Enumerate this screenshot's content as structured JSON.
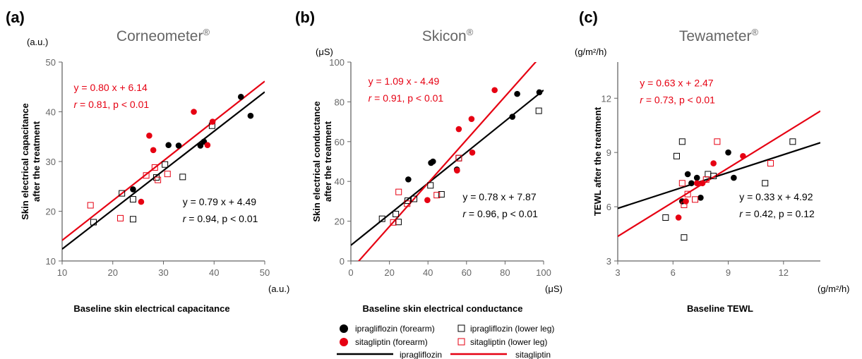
{
  "colors": {
    "ipragliflozin": "#000000",
    "sitagliptin": "#e60012",
    "axis": "#666666"
  },
  "legend": {
    "ipra_forearm": "ipragliflozin (forearm)",
    "ipra_lowerleg": "ipragliflozin (lower leg)",
    "sita_forearm": "sitagliptin (forearm)",
    "sita_lowerleg": "sitagliptin (lower leg)",
    "ipra_line": "ipragliflozin",
    "sita_line": "sitagliptin"
  },
  "chart_data": [
    {
      "type": "scatter",
      "panel": "(a)",
      "title": "Corneometer®",
      "xlabel": "Baseline skin electrical capacitance",
      "ylabel_line1": "Skin electrical capacitance",
      "ylabel_line2": "after the treatment",
      "xunit": "(a.u.)",
      "yunit": "(a.u.)",
      "xlim": [
        10,
        50
      ],
      "ylim": [
        10,
        50
      ],
      "xticks": [
        10,
        20,
        30,
        40,
        50
      ],
      "yticks": [
        10,
        20,
        30,
        40,
        50
      ],
      "grid": false,
      "series": [
        {
          "name": "ipragliflozin (forearm)",
          "marker": "filled-circle",
          "color": "#000000",
          "points": [
            [
              24,
              24.4
            ],
            [
              31,
              33.3
            ],
            [
              33,
              33.2
            ],
            [
              37.3,
              33.2
            ],
            [
              38,
              34
            ],
            [
              45.3,
              43
            ],
            [
              47.2,
              39.2
            ]
          ]
        },
        {
          "name": "ipragliflozin (lower leg)",
          "marker": "open-square",
          "color": "#000000",
          "points": [
            [
              16.2,
              17.8
            ],
            [
              21.8,
              23.6
            ],
            [
              24,
              18.4
            ],
            [
              24,
              22.4
            ],
            [
              28.6,
              26.8
            ],
            [
              30.3,
              29.4
            ],
            [
              33.8,
              26.9
            ],
            [
              39.6,
              37.2
            ]
          ]
        },
        {
          "name": "sitagliptin (forearm)",
          "marker": "filled-circle",
          "color": "#e60012",
          "points": [
            [
              25.6,
              21.9
            ],
            [
              27.2,
              35.2
            ],
            [
              28,
              32.3
            ],
            [
              36,
              40
            ],
            [
              38.7,
              33.3
            ],
            [
              39.7,
              38
            ]
          ]
        },
        {
          "name": "sitagliptin (lower leg)",
          "marker": "open-square",
          "color": "#e60012",
          "points": [
            [
              15.6,
              21.2
            ],
            [
              21.5,
              18.6
            ],
            [
              26.6,
              27.2
            ],
            [
              28.3,
              28.8
            ],
            [
              28.9,
              26.3
            ],
            [
              30.8,
              27.5
            ]
          ]
        }
      ],
      "fits": [
        {
          "name": "ipragliflozin",
          "slope": 0.79,
          "intercept": 4.49,
          "color": "#000000",
          "eq": "y = 0.79 x + 4.49",
          "r_prefix": "r",
          "r_rest": " = 0.94, p < 0.01",
          "eq_x": 33.8,
          "eq_y": 21.2,
          "anchor": "start"
        },
        {
          "name": "sitagliptin",
          "slope": 0.8,
          "intercept": 6.14,
          "color": "#e60012",
          "eq": "y = 0.80 x + 6.14",
          "r_prefix": "r",
          "r_rest": " = 0.81, p < 0.01",
          "eq_x": 12.3,
          "eq_y": 44.2,
          "anchor": "start"
        }
      ]
    },
    {
      "type": "scatter",
      "panel": "(b)",
      "title": "Skicon®",
      "xlabel": "Baseline skin electrical conductance",
      "ylabel_line1": "Skin electrical conductance",
      "ylabel_line2": "after the treatment",
      "xunit": "(μS)",
      "yunit": "(μS)",
      "xlim": [
        0,
        100
      ],
      "ylim": [
        0,
        100
      ],
      "xticks": [
        0,
        20,
        40,
        60,
        80,
        100
      ],
      "yticks": [
        0,
        20,
        40,
        60,
        80,
        100
      ],
      "grid": false,
      "series": [
        {
          "name": "ipragliflozin (forearm)",
          "marker": "filled-circle",
          "color": "#000000",
          "points": [
            [
              29.8,
              41
            ],
            [
              41.6,
              49.3
            ],
            [
              42.6,
              50
            ],
            [
              55,
              46
            ],
            [
              83.8,
              72.5
            ],
            [
              86.3,
              84
            ],
            [
              97.8,
              84.8
            ]
          ]
        },
        {
          "name": "ipragliflozin (lower leg)",
          "marker": "open-square",
          "color": "#000000",
          "points": [
            [
              16.2,
              21.2
            ],
            [
              23.3,
              23.6
            ],
            [
              24.7,
              19.6
            ],
            [
              29.5,
              30.3
            ],
            [
              32.8,
              31.2
            ],
            [
              41.3,
              38
            ],
            [
              47,
              33.5
            ],
            [
              56,
              51.7
            ],
            [
              97.5,
              75.5
            ]
          ]
        },
        {
          "name": "sitagliptin (forearm)",
          "marker": "filled-circle",
          "color": "#e60012",
          "points": [
            [
              39.7,
              30.6
            ],
            [
              55.1,
              45.5
            ],
            [
              56,
              66.3
            ],
            [
              62.6,
              71.4
            ],
            [
              63,
              54.5
            ],
            [
              74.6,
              85.9
            ]
          ]
        },
        {
          "name": "sitagliptin (lower leg)",
          "marker": "open-square",
          "color": "#e60012",
          "points": [
            [
              22,
              19.4
            ],
            [
              24.8,
              34.7
            ],
            [
              29.2,
              28.8
            ],
            [
              44.6,
              33.1
            ],
            [
              56,
              51.7
            ]
          ]
        }
      ],
      "fits": [
        {
          "name": "ipragliflozin",
          "slope": 0.78,
          "intercept": 7.87,
          "color": "#000000",
          "eq": "y = 0.78 x + 7.87",
          "r_prefix": "r",
          "r_rest": " = 0.96, p < 0.01",
          "eq_x": 58,
          "eq_y": 30.5,
          "anchor": "start"
        },
        {
          "name": "sitagliptin",
          "slope": 1.09,
          "intercept": -4.49,
          "color": "#e60012",
          "eq": "y = 1.09 x - 4.49",
          "r_prefix": "r",
          "r_rest": " = 0.91, p < 0.01",
          "eq_x": 9,
          "eq_y": 88.6,
          "anchor": "start"
        }
      ]
    },
    {
      "type": "scatter",
      "panel": "(c)",
      "title": "Tewameter®",
      "xlabel": "Baseline TEWL",
      "ylabel_line1": "TEWL after the treatment",
      "ylabel_line2": "",
      "xunit": "(g/m²/h)",
      "yunit": "(g/m²/h)",
      "xlim": [
        3,
        14
      ],
      "ylim": [
        3,
        14
      ],
      "xticks": [
        3,
        6,
        9,
        12
      ],
      "yticks": [
        3,
        6,
        9,
        12
      ],
      "grid": false,
      "series": [
        {
          "name": "ipragliflozin (forearm)",
          "marker": "filled-circle",
          "color": "#000000",
          "points": [
            [
              6.5,
              6.3
            ],
            [
              6.8,
              7.8
            ],
            [
              7,
              7.3
            ],
            [
              7.3,
              7.6
            ],
            [
              7.5,
              6.5
            ],
            [
              9,
              9
            ],
            [
              9.3,
              7.6
            ]
          ]
        },
        {
          "name": "ipragliflozin (lower leg)",
          "marker": "open-square",
          "color": "#000000",
          "points": [
            [
              5.6,
              5.4
            ],
            [
              6.2,
              8.8
            ],
            [
              6.5,
              9.6
            ],
            [
              6.6,
              4.3
            ],
            [
              7.9,
              7.8
            ],
            [
              8.2,
              7.7
            ],
            [
              11,
              7.3
            ],
            [
              12.5,
              9.6
            ]
          ]
        },
        {
          "name": "sitagliptin (forearm)",
          "marker": "filled-circle",
          "color": "#e60012",
          "points": [
            [
              6.3,
              5.4
            ],
            [
              6.7,
              6.3
            ],
            [
              7.3,
              7.3
            ],
            [
              7.6,
              7.3
            ],
            [
              8.2,
              8.4
            ],
            [
              9.8,
              8.8
            ]
          ]
        },
        {
          "name": "sitagliptin (lower leg)",
          "marker": "open-square",
          "color": "#e60012",
          "points": [
            [
              6.5,
              7.3
            ],
            [
              6.6,
              6.1
            ],
            [
              6.8,
              6.7
            ],
            [
              7.2,
              6.4
            ],
            [
              7.8,
              7.5
            ],
            [
              8.4,
              9.6
            ],
            [
              11.3,
              8.4
            ]
          ]
        }
      ],
      "fits": [
        {
          "name": "ipragliflozin",
          "slope": 0.33,
          "intercept": 4.92,
          "color": "#000000",
          "eq": "y = 0.33 x + 4.92",
          "r_prefix": "r",
          "r_rest": " = 0.42, p = 0.12",
          "eq_x": 9.6,
          "eq_y": 6.35,
          "anchor": "start"
        },
        {
          "name": "sitagliptin",
          "slope": 0.63,
          "intercept": 2.47,
          "color": "#e60012",
          "eq": "y = 0.63 x + 2.47",
          "r_prefix": "r",
          "r_rest": " = 0.73, p < 0.01",
          "eq_x": 4.2,
          "eq_y": 12.65,
          "anchor": "start"
        }
      ]
    }
  ]
}
